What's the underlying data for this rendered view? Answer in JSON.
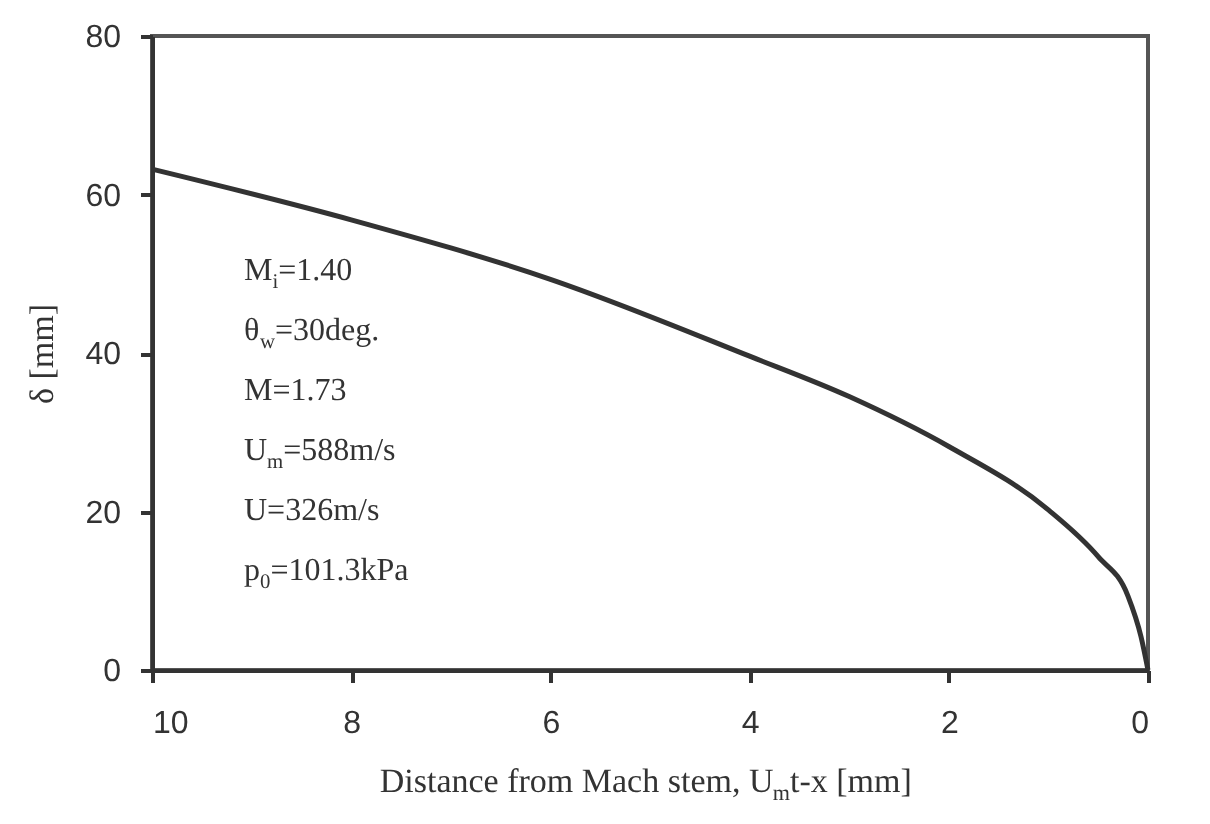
{
  "chart_data": {
    "type": "line",
    "xlabel": "Distance from Mach stem, U$_{m}$t-x  [mm]",
    "ylabel": "δ [mm]",
    "x": [
      10,
      8,
      6,
      4,
      3,
      2,
      1,
      0.5,
      0.2,
      0.07,
      0
    ],
    "series": [
      {
        "color": "#333333",
        "values": [
          63.2,
          56.8,
          49.3,
          39.6,
          34.5,
          28.2,
          20.2,
          14.3,
          9.3,
          4.2,
          0
        ]
      }
    ],
    "xlim": [
      10,
      0
    ],
    "xticks": [
      10,
      8,
      6,
      4,
      2,
      0
    ],
    "ylim": [
      0,
      80
    ],
    "yticks": [
      0,
      20,
      40,
      60,
      80
    ],
    "grid": false,
    "marker": "none",
    "line_style": "solid",
    "annotations": [
      "M$_{i}$=1.40",
      "θ$_{w}$=30deg.",
      "M=1.73",
      "U$_{m}$=588m/s",
      "U=326m/s",
      "p$_{0}$=101.3kPa"
    ]
  }
}
